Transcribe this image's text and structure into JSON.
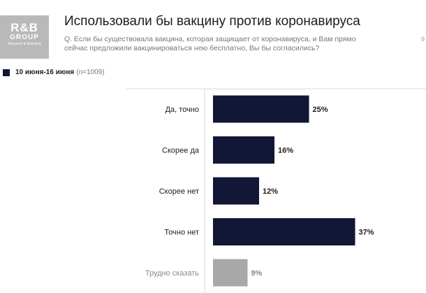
{
  "logo": {
    "main": "R&B",
    "sub": "GROUP",
    "tag": "Research & Branding"
  },
  "header": {
    "title": "Использовали бы вакцину против коронавируса",
    "subtitle": "Q. Если бы существовала вакцина, которая защищает от коронавируса, и Вам прямо сейчас предложили вакцинироваться нею бесплатно, Вы бы согласились?",
    "corner_mark": "9"
  },
  "legend": {
    "label": "10 июня-16 июня",
    "note": "(n=1009)"
  },
  "colors": {
    "primary_bar": "#121637",
    "muted_bar": "#a8a8a8",
    "label_text": "#1c1c1c",
    "muted_text": "#888888"
  },
  "chart_data": {
    "type": "bar",
    "orientation": "horizontal",
    "categories": [
      "Да, точно",
      "Скорее да",
      "Скорее нет",
      "Точно нет",
      "Трудно сказать"
    ],
    "series": [
      {
        "name": "10 июня-16 июня",
        "values": [
          25,
          16,
          12,
          37,
          9
        ]
      }
    ],
    "value_labels": [
      "25%",
      "16%",
      "12%",
      "37%",
      "9%"
    ],
    "muted": [
      false,
      false,
      false,
      false,
      true
    ],
    "unit": "%",
    "xlim": [
      0,
      40
    ],
    "grid": false,
    "legend_position": "top-left"
  }
}
